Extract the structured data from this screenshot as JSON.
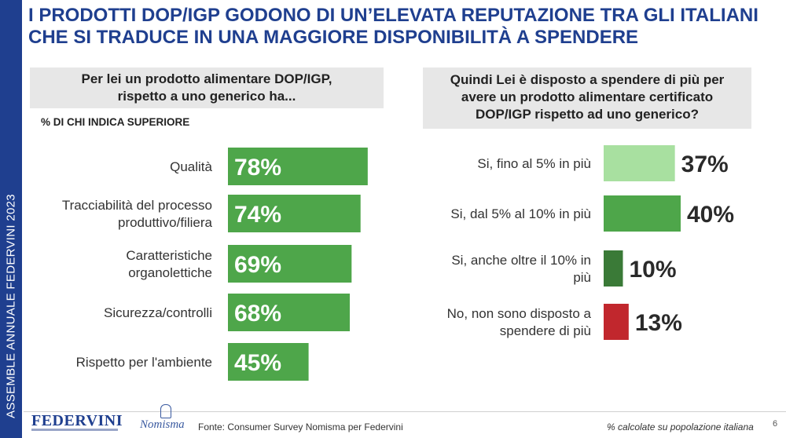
{
  "title": {
    "line1": "I PRODOTTI DOP/IGP GODONO DI UN’ELEVATA REPUTAZIONE TRA GLI ITALIANI",
    "line2": "CHE SI TRADUCE IN UNA MAGGIORE DISPONIBILITÀ A SPENDERE"
  },
  "side_label": "ASSEMBLE ANNUALE FEDERVINI 2023",
  "left_question": {
    "line1": "Per lei un prodotto alimentare DOP/IGP,",
    "line2": "rispetto a uno generico ha..."
  },
  "left_subhead": "% DI CHI INDICA SUPERIORE",
  "right_question": {
    "line1": "Quindi Lei è disposto a spendere di più per",
    "line2": "avere un prodotto alimentare certificato",
    "line3": "DOP/IGP rispetto ad uno generico?"
  },
  "chart_data": [
    {
      "type": "bar",
      "orientation": "horizontal",
      "title": "Per lei un prodotto alimentare DOP/IGP, rispetto a uno generico ha...",
      "subtitle": "% DI CHI INDICA SUPERIORE",
      "unit": "%",
      "xlim": [
        0,
        100
      ],
      "grid": false,
      "categories": [
        [
          "Qualità"
        ],
        [
          "Tracciabilità del processo",
          "produttivo/filiera"
        ],
        [
          "Caratteristiche",
          "organolettiche"
        ],
        [
          "Sicurezza/controlli"
        ],
        [
          "Rispetto per l'ambiente"
        ]
      ],
      "values": [
        78,
        74,
        69,
        68,
        45
      ],
      "labels": [
        "78%",
        "74%",
        "69%",
        "68%",
        "45%"
      ],
      "colors": [
        "#4ea64a",
        "#4ea64a",
        "#4ea64a",
        "#4ea64a",
        "#4ea64a"
      ]
    },
    {
      "type": "bar",
      "orientation": "horizontal",
      "title": "Quindi Lei è disposto a spendere di più per avere un prodotto alimentare certificato DOP/IGP rispetto ad uno generico?",
      "unit": "%",
      "xlim": [
        0,
        100
      ],
      "grid": false,
      "categories": [
        [
          "Si, fino al 5% in più"
        ],
        [
          "Si, dal 5% al 10% in più"
        ],
        [
          "Si, anche oltre il 10% in",
          "più"
        ],
        [
          "No, non sono disposto a",
          "spendere di più"
        ]
      ],
      "values": [
        37,
        40,
        10,
        13
      ],
      "labels": [
        "37%",
        "40%",
        "10%",
        "13%"
      ],
      "colors": [
        "#a8e0a0",
        "#4ea64a",
        "#3a7a37",
        "#c1272d"
      ]
    }
  ],
  "footer": {
    "logo1": "FEDERVINI",
    "logo2": "Nomisma",
    "source": "Fonte: Consumer Survey Nomisma per Federvini",
    "note": "% calcolate su popolazione italiana",
    "page": "6"
  }
}
